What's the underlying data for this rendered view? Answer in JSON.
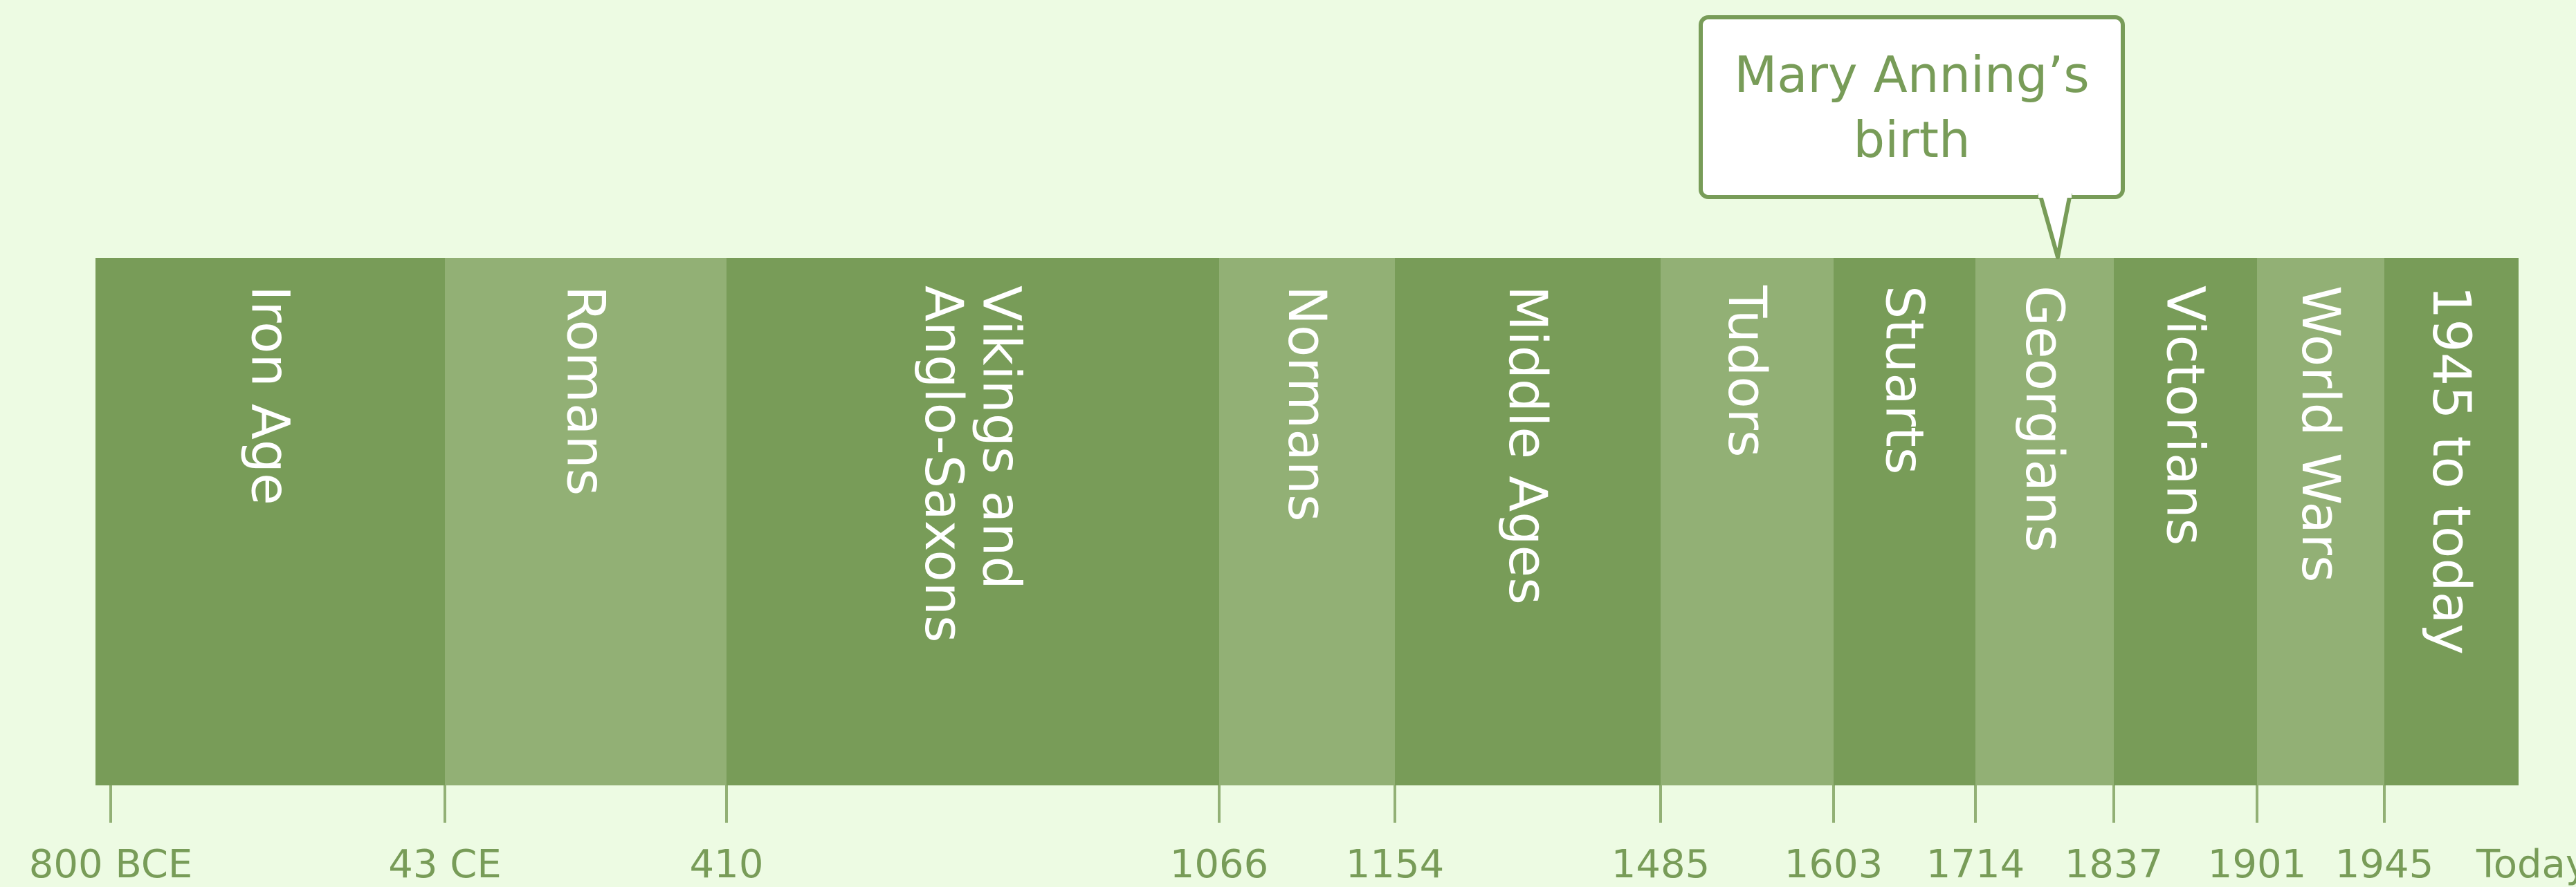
{
  "timeline": {
    "colors": {
      "background": "#edfbe3",
      "dark_band": "#789c58",
      "light_band": "#92b075",
      "text": "#ffffff",
      "axis_text": "#789c58"
    },
    "periods": [
      {
        "label": "Iron Age",
        "shade": "dark"
      },
      {
        "label": "Romans",
        "shade": "light"
      },
      {
        "label": "Vikings  and\nAnglo-Saxons",
        "shade": "dark"
      },
      {
        "label": "Normans",
        "shade": "light"
      },
      {
        "label": "Middle Ages",
        "shade": "dark"
      },
      {
        "label": "Tudors",
        "shade": "light"
      },
      {
        "label": "Stuarts",
        "shade": "dark"
      },
      {
        "label": "Georgians",
        "shade": "light"
      },
      {
        "label": "Victorians",
        "shade": "dark"
      },
      {
        "label": "World Wars",
        "shade": "light"
      },
      {
        "label": "1945 to today",
        "shade": "dark"
      }
    ],
    "dates": [
      "800 BCE",
      "43 CE",
      "410",
      "1066",
      "1154",
      "1485",
      "1603",
      "1714",
      "1837",
      "1901",
      "1945",
      "Today"
    ],
    "callout": {
      "text": "Mary Anning’s\nbirth"
    }
  }
}
